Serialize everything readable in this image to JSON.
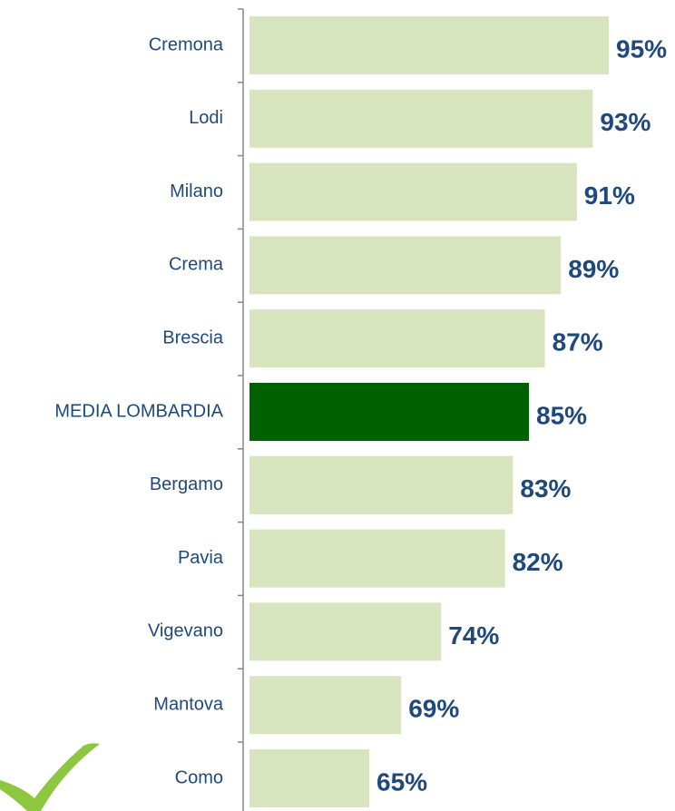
{
  "chart_data": {
    "type": "bar",
    "orientation": "horizontal",
    "categories": [
      "Cremona",
      "Lodi",
      "Milano",
      "Crema",
      "Brescia",
      "MEDIA LOMBARDIA",
      "Bergamo",
      "Pavia",
      "Vigevano",
      "Mantova",
      "Como"
    ],
    "values": [
      95,
      93,
      91,
      89,
      87,
      85,
      83,
      82,
      74,
      69,
      65
    ],
    "value_labels": [
      "95%",
      "93%",
      "91%",
      "89%",
      "87%",
      "85%",
      "83%",
      "82%",
      "74%",
      "69%",
      "65%"
    ],
    "colors": [
      "#d7e4bd",
      "#d7e4bd",
      "#d7e4bd",
      "#d7e4bd",
      "#d7e4bd",
      "#006100",
      "#d7e4bd",
      "#d7e4bd",
      "#d7e4bd",
      "#d7e4bd",
      "#d7e4bd"
    ],
    "xlim": [
      50,
      100
    ]
  }
}
